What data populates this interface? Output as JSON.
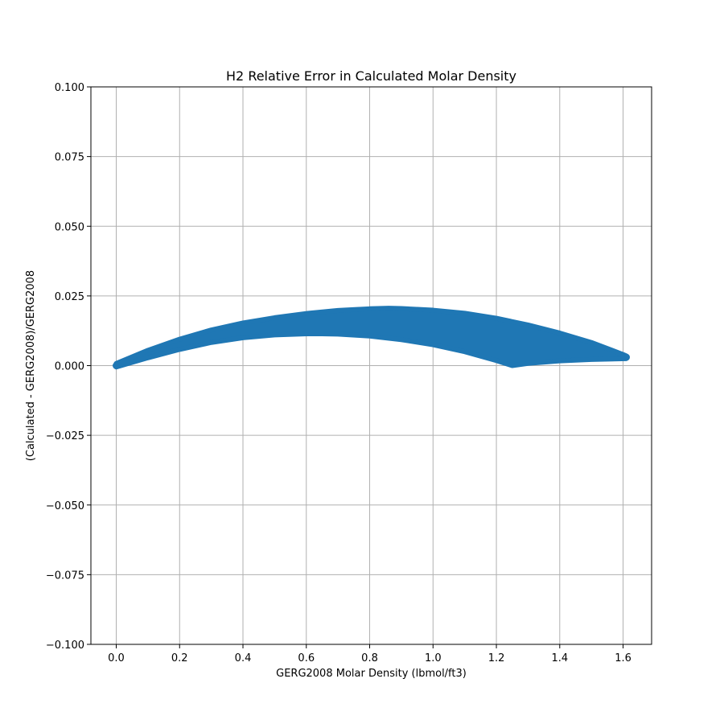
{
  "chart_data": {
    "type": "scatter",
    "title": "H2 Relative Error in Calculated Molar Density",
    "xlabel": "GERG2008 Molar Density (lbmol/ft3)",
    "ylabel": "(Calculated - GERG2008)/GERG2008",
    "xlim": [
      -0.08,
      1.69
    ],
    "ylim": [
      -0.1,
      0.1
    ],
    "xticks": [
      0.0,
      0.2,
      0.4,
      0.6,
      0.8,
      1.0,
      1.2,
      1.4,
      1.6
    ],
    "xtick_labels": [
      "0.0",
      "0.2",
      "0.4",
      "0.6",
      "0.8",
      "1.0",
      "1.2",
      "1.4",
      "1.6"
    ],
    "yticks": [
      -0.1,
      -0.075,
      -0.05,
      -0.025,
      0.0,
      0.025,
      0.05,
      0.075,
      0.1
    ],
    "ytick_labels": [
      "−0.100",
      "−0.075",
      "−0.050",
      "−0.025",
      "0.000",
      "0.025",
      "0.050",
      "0.075",
      "0.100"
    ],
    "grid": true,
    "marker_color": "#1f77b4",
    "series": [
      {
        "upper_envelope": {
          "x": [
            0.0,
            0.1,
            0.2,
            0.3,
            0.4,
            0.5,
            0.6,
            0.7,
            0.8,
            0.86,
            0.9,
            1.0,
            1.1,
            1.2,
            1.3,
            1.4,
            1.5,
            1.6,
            1.61
          ],
          "y": [
            0.0008,
            0.0055,
            0.0095,
            0.0128,
            0.0153,
            0.0172,
            0.0187,
            0.0198,
            0.0204,
            0.0206,
            0.0205,
            0.0199,
            0.0188,
            0.017,
            0.0146,
            0.0117,
            0.0083,
            0.004,
            0.0035
          ]
        },
        "lower_envelope": {
          "x": [
            0.0,
            0.1,
            0.2,
            0.3,
            0.4,
            0.5,
            0.6,
            0.65,
            0.7,
            0.8,
            0.9,
            1.0,
            1.1,
            1.2,
            1.25,
            1.3,
            1.4,
            1.5,
            1.61
          ],
          "y": [
            -0.0005,
            0.0028,
            0.0058,
            0.0083,
            0.01,
            0.011,
            0.0114,
            0.0114,
            0.0113,
            0.0106,
            0.0093,
            0.0075,
            0.005,
            0.0018,
            0.0,
            0.0008,
            0.0017,
            0.0022,
            0.0025
          ]
        }
      }
    ]
  }
}
